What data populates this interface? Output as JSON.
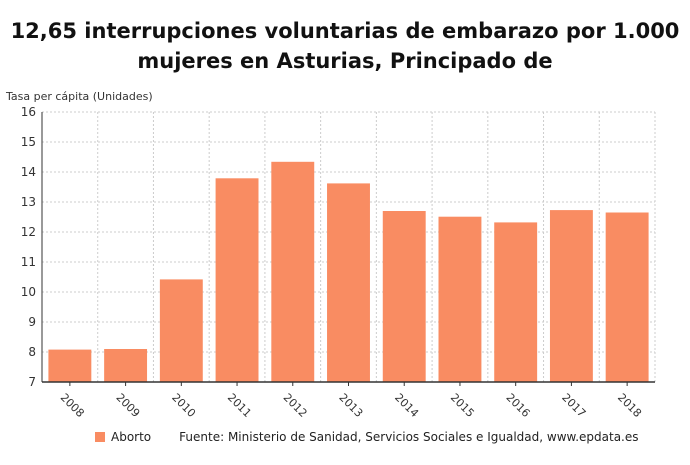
{
  "chart_data": {
    "type": "bar",
    "title": "12,65 interrupciones voluntarias de embarazo por 1.000 mujeres en Asturias, Principado de",
    "ylabel": "Tasa per cápita (Unidades)",
    "xlabel": "",
    "categories": [
      "2008",
      "2009",
      "2010",
      "2011",
      "2012",
      "2013",
      "2014",
      "2015",
      "2016",
      "2017",
      "2018"
    ],
    "series": [
      {
        "name": "Aborto",
        "values": [
          8.08,
          8.1,
          10.42,
          13.79,
          14.34,
          13.62,
          12.7,
          12.51,
          12.32,
          12.73,
          12.65
        ],
        "color": "#f98c62"
      }
    ],
    "ylim": [
      7,
      16
    ],
    "yticks": [
      7,
      8,
      9,
      10,
      11,
      12,
      13,
      14,
      15,
      16
    ],
    "grid": true,
    "legend": "bottom-left"
  },
  "source": "Fuente: Ministerio de Sanidad, Servicios Sociales e Igualdad, www.epdata.es"
}
